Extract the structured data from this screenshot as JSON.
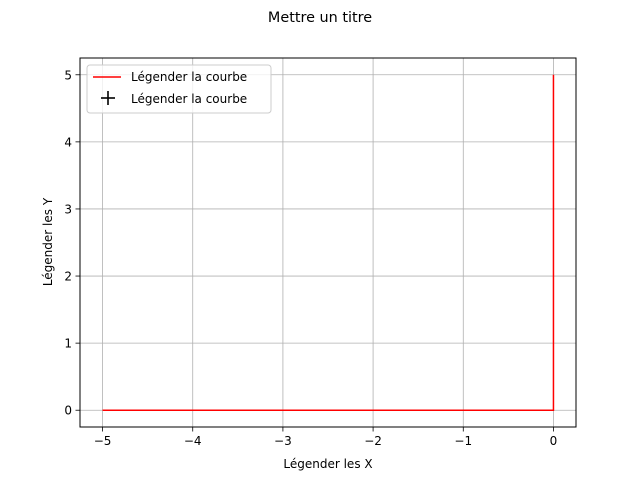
{
  "figure": {
    "title": "Mettre un titre"
  },
  "chart_data": {
    "type": "line",
    "title": "Mettre un titre",
    "xlabel": "Légender les X",
    "ylabel": "Légender les Y",
    "xlim": [
      -5.25,
      0.25
    ],
    "ylim": [
      -0.25,
      5.25
    ],
    "grid": true,
    "xticks": [
      -5,
      -4,
      -3,
      -2,
      -1,
      0
    ],
    "yticks": [
      0,
      1,
      2,
      3,
      4,
      5
    ],
    "xtick_labels": [
      "−5",
      "−4",
      "−3",
      "−2",
      "−1",
      "0"
    ],
    "ytick_labels": [
      "0",
      "1",
      "2",
      "3",
      "4",
      "5"
    ],
    "series": [
      {
        "name": "Légender la courbe",
        "style": "line",
        "color": "#ff0000",
        "x": [
          -5,
          0,
          0
        ],
        "y": [
          0,
          0,
          5
        ]
      },
      {
        "name": "Légender la courbe",
        "style": "marker-plus",
        "color": "#000000",
        "x": [],
        "y": []
      }
    ],
    "legend": {
      "placement": "upper-left",
      "entries": [
        {
          "label": "Légender la courbe",
          "kind": "line",
          "color": "#ff0000"
        },
        {
          "label": "Légender la courbe",
          "kind": "plus-marker",
          "color": "#000000"
        }
      ]
    }
  }
}
